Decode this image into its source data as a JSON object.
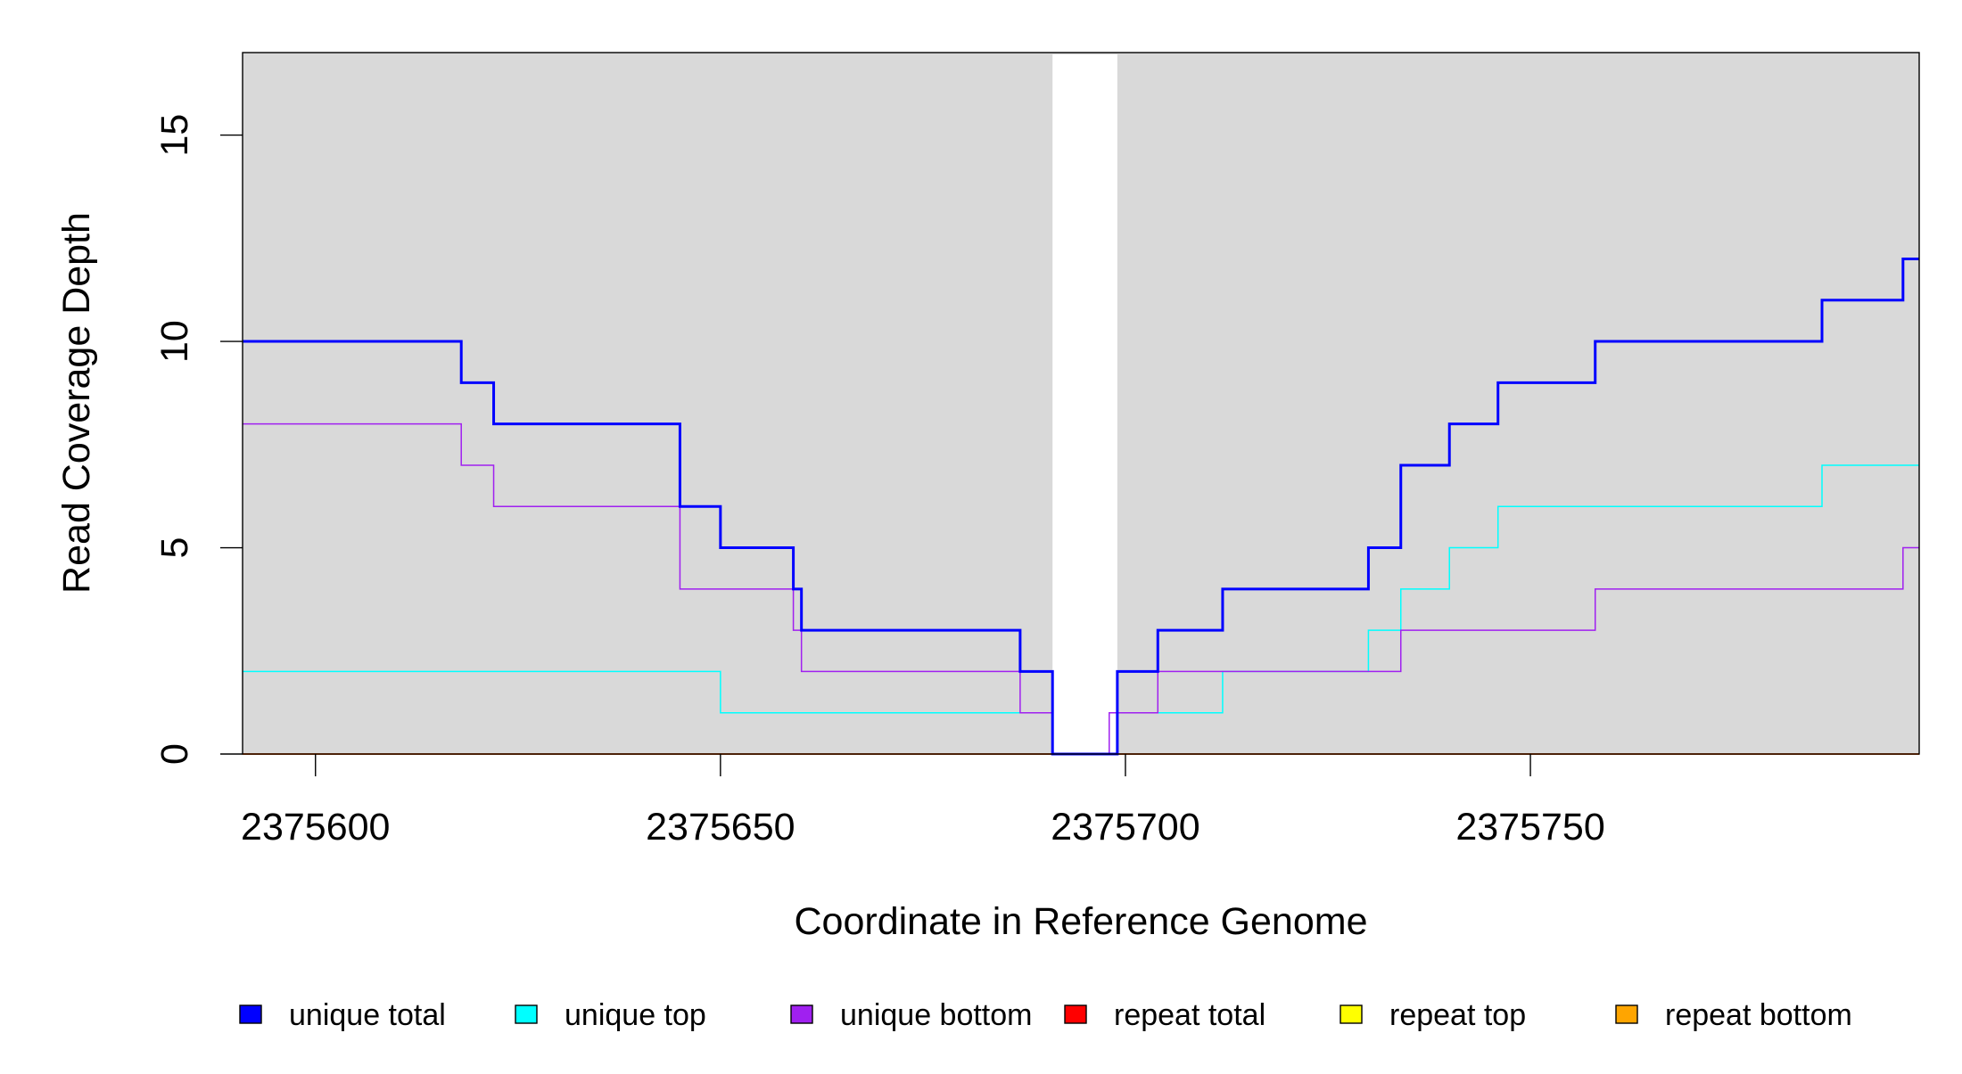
{
  "chart_data": {
    "type": "line",
    "step": true,
    "title": "",
    "xlabel": "Coordinate in Reference Genome",
    "ylabel": "Read Coverage Depth",
    "xlim": [
      2375591,
      2375798
    ],
    "ylim": [
      0,
      17
    ],
    "x_ticks": [
      2375600,
      2375650,
      2375700,
      2375750
    ],
    "x_tick_labels": [
      "2375600",
      "2375650",
      "2375700",
      "2375750"
    ],
    "y_ticks": [
      0,
      5,
      10,
      15
    ],
    "y_tick_labels": [
      "0",
      "5",
      "10",
      "15"
    ],
    "grid": false,
    "background_color": "#d9d9d9",
    "unshaded_region": [
      2375691,
      2375699
    ],
    "legend_position": "bottom",
    "series": [
      {
        "name": "unique total",
        "color": "#0000ff",
        "steps": [
          [
            2375591,
            10
          ],
          [
            2375618,
            9
          ],
          [
            2375622,
            8
          ],
          [
            2375645,
            6
          ],
          [
            2375650,
            5
          ],
          [
            2375659,
            4
          ],
          [
            2375660,
            3
          ],
          [
            2375687,
            2
          ],
          [
            2375691,
            0
          ],
          [
            2375699,
            2
          ],
          [
            2375704,
            3
          ],
          [
            2375712,
            4
          ],
          [
            2375730,
            5
          ],
          [
            2375734,
            7
          ],
          [
            2375740,
            8
          ],
          [
            2375746,
            9
          ],
          [
            2375758,
            10
          ],
          [
            2375786,
            11
          ],
          [
            2375796,
            12
          ],
          [
            2375798,
            12
          ]
        ]
      },
      {
        "name": "unique top",
        "color": "#00ffff",
        "steps": [
          [
            2375591,
            2
          ],
          [
            2375650,
            1
          ],
          [
            2375691,
            0
          ],
          [
            2375699,
            1
          ],
          [
            2375712,
            2
          ],
          [
            2375730,
            3
          ],
          [
            2375734,
            4
          ],
          [
            2375740,
            5
          ],
          [
            2375746,
            6
          ],
          [
            2375786,
            7
          ],
          [
            2375798,
            7
          ]
        ]
      },
      {
        "name": "unique bottom",
        "color": "#a020f0",
        "steps": [
          [
            2375591,
            8
          ],
          [
            2375618,
            7
          ],
          [
            2375622,
            6
          ],
          [
            2375645,
            4
          ],
          [
            2375659,
            3
          ],
          [
            2375660,
            2
          ],
          [
            2375687,
            1
          ],
          [
            2375691,
            0
          ],
          [
            2375698,
            1
          ],
          [
            2375704,
            2
          ],
          [
            2375734,
            3
          ],
          [
            2375758,
            4
          ],
          [
            2375796,
            5
          ],
          [
            2375798,
            5
          ]
        ]
      },
      {
        "name": "repeat total",
        "color": "#ff0000",
        "steps": [
          [
            2375591,
            0
          ],
          [
            2375798,
            0
          ]
        ]
      },
      {
        "name": "repeat top",
        "color": "#ffff00",
        "steps": [
          [
            2375591,
            0
          ],
          [
            2375798,
            0
          ]
        ]
      },
      {
        "name": "repeat bottom",
        "color": "#ffa500",
        "steps": [
          [
            2375591,
            0
          ],
          [
            2375798,
            0
          ]
        ]
      }
    ]
  }
}
